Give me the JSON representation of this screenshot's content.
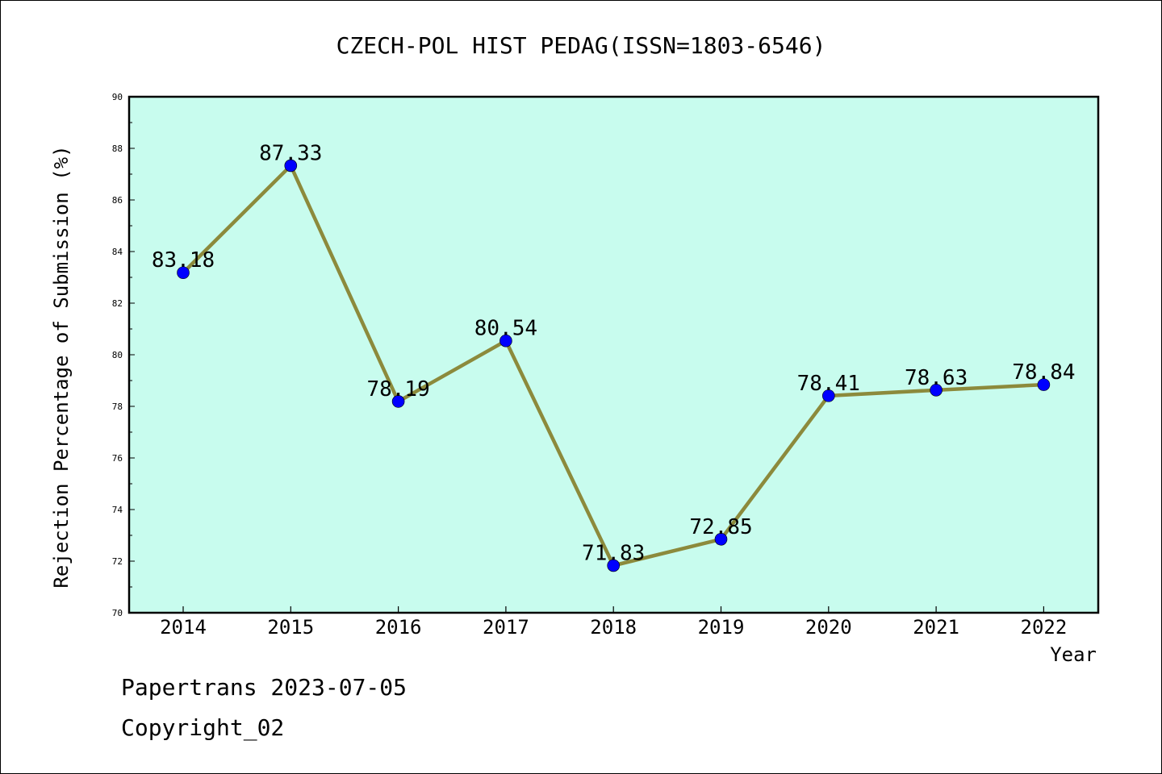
{
  "chart_data": {
    "type": "line",
    "title": "CZECH-POL HIST PEDAG(ISSN=1803-6546)",
    "xlabel": "Year",
    "ylabel": "Rejection Percentage of Submission (%)",
    "categories": [
      "2014",
      "2015",
      "2016",
      "2017",
      "2018",
      "2019",
      "2020",
      "2021",
      "2022"
    ],
    "values": [
      83.18,
      87.33,
      78.19,
      80.54,
      71.83,
      72.85,
      78.41,
      78.63,
      78.84
    ],
    "data_labels": [
      "83.18",
      "87.33",
      "78.19",
      "80.54",
      "71.83",
      "72.85",
      "78.41",
      "78.63",
      "78.84"
    ],
    "ylim": [
      70,
      90
    ],
    "yticks": [
      70,
      72,
      74,
      76,
      78,
      80,
      82,
      84,
      86,
      88,
      90
    ],
    "grid": false,
    "colors": {
      "plot_background": "#c8fcee",
      "line": "#8c8a3c",
      "marker": "#0000ff"
    }
  },
  "footer": {
    "line1": "Papertrans 2023-07-05",
    "line2": "Copyright_02"
  }
}
